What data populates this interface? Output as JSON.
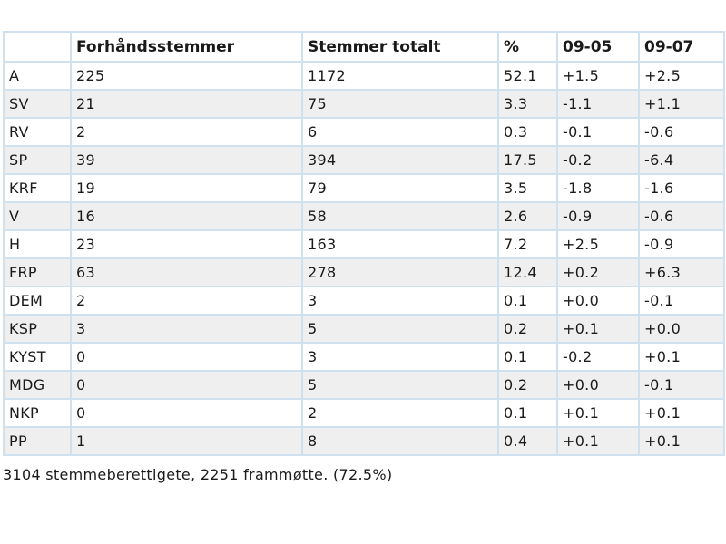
{
  "table": {
    "headers": [
      "",
      "Forhåndsstemmer",
      "Stemmer totalt",
      "%",
      "09-05",
      "09-07"
    ],
    "rows": [
      [
        "A",
        "225",
        "1172",
        "52.1",
        "+1.5",
        "+2.5"
      ],
      [
        "SV",
        "21",
        "75",
        "3.3",
        "-1.1",
        "+1.1"
      ],
      [
        "RV",
        "2",
        "6",
        "0.3",
        "-0.1",
        "-0.6"
      ],
      [
        "SP",
        "39",
        "394",
        "17.5",
        "-0.2",
        "-6.4"
      ],
      [
        "KRF",
        "19",
        "79",
        "3.5",
        "-1.8",
        "-1.6"
      ],
      [
        "V",
        "16",
        "58",
        "2.6",
        "-0.9",
        "-0.6"
      ],
      [
        "H",
        "23",
        "163",
        "7.2",
        "+2.5",
        "-0.9"
      ],
      [
        "FRP",
        "63",
        "278",
        "12.4",
        "+0.2",
        "+6.3"
      ],
      [
        "DEM",
        "2",
        "3",
        "0.1",
        "+0.0",
        "-0.1"
      ],
      [
        "KSP",
        "3",
        "5",
        "0.2",
        "+0.1",
        "+0.0"
      ],
      [
        "KYST",
        "0",
        "3",
        "0.1",
        "-0.2",
        "+0.1"
      ],
      [
        "MDG",
        "0",
        "5",
        "0.2",
        "+0.0",
        "-0.1"
      ],
      [
        "NKP",
        "0",
        "2",
        "0.1",
        "+0.1",
        "+0.1"
      ],
      [
        "PP",
        "1",
        "8",
        "0.4",
        "+0.1",
        "+0.1"
      ]
    ]
  },
  "summary": "3104 stemmeberettigete, 2251 frammøtte. (72.5%)",
  "colors": {
    "border": "#cfe1ee",
    "row_alt": "#efefef",
    "text": "#1a1a1a"
  }
}
